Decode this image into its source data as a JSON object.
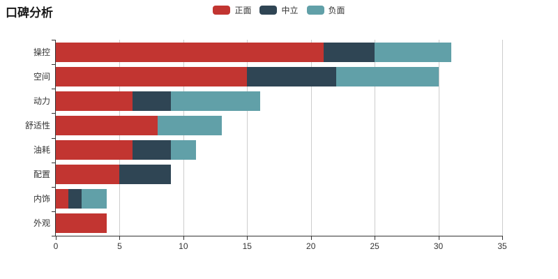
{
  "title": "口碑分析",
  "legend": {
    "items": [
      {
        "label": "正面",
        "color": "#c23531"
      },
      {
        "label": "中立",
        "color": "#2f4554"
      },
      {
        "label": "负面",
        "color": "#61a0a8"
      }
    ]
  },
  "chart_data": {
    "type": "bar",
    "orientation": "horizontal",
    "stacked": true,
    "title": "口碑分析",
    "categories": [
      "操控",
      "空间",
      "动力",
      "舒适性",
      "油耗",
      "配置",
      "内饰",
      "外观"
    ],
    "series": [
      {
        "name": "正面",
        "color": "#c23531",
        "values": [
          21,
          15,
          6,
          8,
          6,
          5,
          1,
          4
        ]
      },
      {
        "name": "中立",
        "color": "#2f4554",
        "values": [
          4,
          7,
          3,
          0,
          3,
          4,
          1,
          0
        ]
      },
      {
        "name": "负面",
        "color": "#61a0a8",
        "values": [
          6,
          8,
          7,
          5,
          2,
          0,
          2,
          0
        ]
      }
    ],
    "xlabel": "",
    "ylabel": "",
    "x_ticks": [
      0,
      5,
      10,
      15,
      20,
      25,
      30,
      35
    ],
    "xlim": [
      0,
      35
    ],
    "grid": true,
    "legend_position": "top-center"
  },
  "style": {
    "axis_color": "#333333",
    "grid_color": "#cccccc",
    "text_color": "#333333",
    "background": "#ffffff"
  }
}
